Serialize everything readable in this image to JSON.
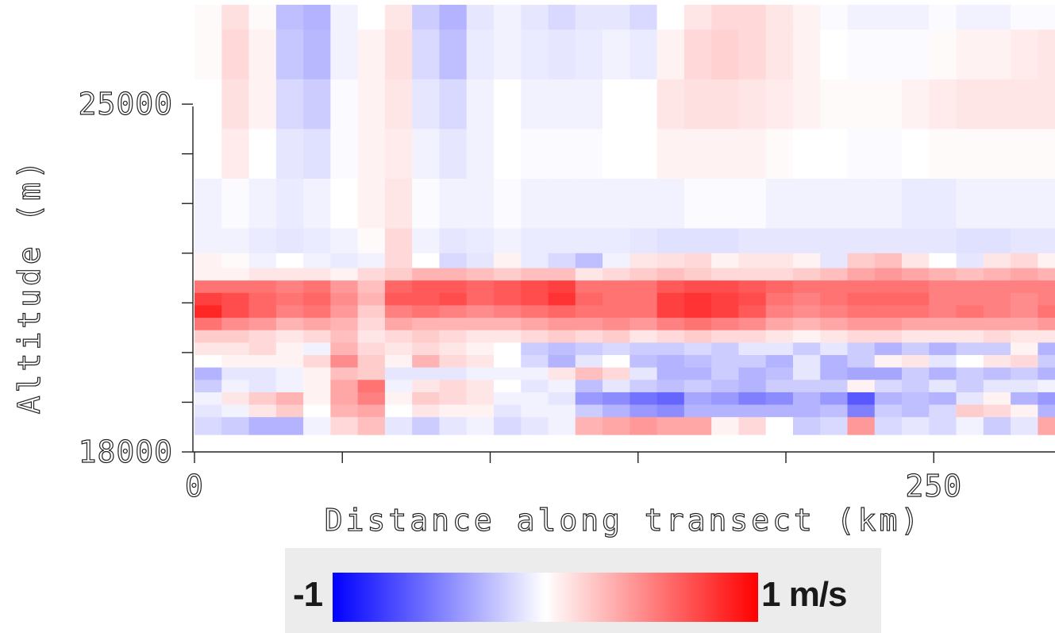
{
  "chart_data": {
    "type": "heatmap",
    "xlabel": "Distance along transect (km)",
    "ylabel": "Altitude (m)",
    "xlim": [
      0,
      291
    ],
    "ylim": [
      18000,
      27000
    ],
    "x_tick_values": [
      0,
      50,
      100,
      150,
      200,
      250
    ],
    "x_tick_labels": [
      "0",
      "",
      "",
      "",
      "",
      "250"
    ],
    "y_tick_values": [
      18000,
      19000,
      20000,
      21000,
      22000,
      23000,
      24000,
      25000
    ],
    "y_tick_labels": [
      "18000",
      "",
      "",
      "",
      "",
      "",
      "",
      "25000"
    ],
    "data_y_range": [
      18350,
      27000
    ],
    "x_edges": [
      0,
      9.2,
      18.4,
      27.6,
      36.8,
      46,
      55.2,
      64.4,
      73.6,
      82.8,
      92,
      101.2,
      110.4,
      119.6,
      128.8,
      138,
      147.2,
      156.4,
      165.6,
      174.8,
      184,
      193.2,
      202.4,
      211.6,
      220.8,
      230,
      239.2,
      248.4,
      257.6,
      266.8,
      276,
      285.2,
      291
    ],
    "layers": [
      {
        "y0": 26500,
        "y1": 27000,
        "values": [
          0.02,
          0.12,
          0.02,
          -0.25,
          -0.3,
          -0.05,
          0.0,
          0.1,
          -0.2,
          -0.3,
          -0.1,
          -0.05,
          -0.1,
          -0.15,
          -0.1,
          -0.1,
          -0.15,
          0.0,
          0.1,
          0.15,
          0.15,
          0.1,
          0.05,
          -0.02,
          -0.05,
          -0.05,
          -0.05,
          -0.02,
          -0.05,
          -0.05,
          -0.02,
          -0.02
        ]
      },
      {
        "y0": 25500,
        "y1": 26500,
        "values": [
          0.02,
          0.15,
          0.05,
          -0.22,
          -0.28,
          -0.05,
          0.05,
          0.12,
          -0.15,
          -0.25,
          -0.08,
          -0.05,
          -0.08,
          -0.1,
          -0.08,
          -0.05,
          -0.08,
          0.05,
          0.15,
          0.18,
          0.15,
          0.1,
          0.05,
          0.0,
          -0.02,
          -0.02,
          -0.02,
          0.02,
          0.05,
          0.05,
          0.08,
          0.1
        ]
      },
      {
        "y0": 24500,
        "y1": 25500,
        "values": [
          0.0,
          0.12,
          0.05,
          -0.15,
          -0.2,
          -0.02,
          0.05,
          0.1,
          -0.1,
          -0.15,
          -0.05,
          0.0,
          -0.05,
          -0.05,
          -0.05,
          0.0,
          0.0,
          0.1,
          0.12,
          0.12,
          0.1,
          0.08,
          0.05,
          0.02,
          0.02,
          0.02,
          0.05,
          0.08,
          0.1,
          0.1,
          0.1,
          0.1
        ]
      },
      {
        "y0": 23500,
        "y1": 24500,
        "values": [
          0.0,
          0.08,
          0.0,
          -0.1,
          -0.12,
          -0.02,
          0.05,
          0.08,
          -0.05,
          -0.1,
          -0.05,
          0.0,
          -0.02,
          -0.02,
          -0.02,
          0.0,
          0.0,
          0.05,
          0.05,
          0.05,
          0.05,
          0.02,
          0.0,
          0.0,
          -0.02,
          -0.02,
          0.0,
          0.02,
          0.02,
          0.02,
          0.02,
          0.02
        ]
      },
      {
        "y0": 22500,
        "y1": 23500,
        "values": [
          -0.05,
          -0.02,
          -0.05,
          -0.08,
          -0.05,
          0.0,
          0.05,
          0.1,
          -0.02,
          -0.05,
          -0.05,
          -0.02,
          -0.05,
          -0.05,
          -0.05,
          -0.05,
          -0.05,
          -0.05,
          -0.02,
          -0.02,
          -0.02,
          -0.05,
          -0.05,
          -0.05,
          -0.05,
          -0.05,
          -0.08,
          -0.08,
          -0.05,
          -0.05,
          -0.05,
          -0.05
        ]
      },
      {
        "y0": 22000,
        "y1": 22500,
        "values": [
          -0.05,
          -0.05,
          -0.08,
          -0.1,
          -0.08,
          -0.05,
          0.02,
          0.15,
          -0.05,
          -0.1,
          -0.08,
          -0.05,
          -0.08,
          -0.08,
          -0.08,
          -0.08,
          -0.1,
          -0.12,
          -0.12,
          -0.12,
          -0.1,
          -0.1,
          -0.1,
          -0.1,
          -0.1,
          -0.1,
          -0.1,
          -0.1,
          -0.12,
          -0.12,
          -0.1,
          -0.1
        ]
      },
      {
        "y0": 21700,
        "y1": 22000,
        "values": [
          0.05,
          0.02,
          -0.05,
          0.0,
          -0.05,
          -0.08,
          -0.05,
          0.15,
          0.0,
          -0.15,
          -0.1,
          0.05,
          -0.08,
          -0.15,
          -0.25,
          -0.05,
          0.1,
          0.12,
          0.15,
          0.05,
          0.1,
          0.1,
          0.05,
          -0.1,
          0.2,
          0.25,
          0.1,
          0.0,
          -0.1,
          0.1,
          0.15,
          0.05
        ]
      },
      {
        "y0": 21450,
        "y1": 21700,
        "values": [
          0.05,
          0.05,
          0.1,
          0.1,
          0.1,
          0.05,
          0.15,
          0.2,
          0.3,
          0.3,
          0.25,
          0.2,
          0.25,
          0.25,
          0.1,
          0.15,
          0.2,
          0.25,
          0.2,
          0.15,
          0.15,
          0.15,
          0.2,
          0.25,
          0.35,
          0.4,
          0.35,
          0.3,
          0.25,
          0.3,
          0.35,
          0.3
        ]
      },
      {
        "y0": 21200,
        "y1": 21450,
        "values": [
          0.55,
          0.55,
          0.55,
          0.5,
          0.55,
          0.4,
          0.25,
          0.6,
          0.65,
          0.65,
          0.6,
          0.65,
          0.7,
          0.75,
          0.55,
          0.55,
          0.55,
          0.65,
          0.7,
          0.7,
          0.65,
          0.6,
          0.55,
          0.55,
          0.55,
          0.55,
          0.55,
          0.5,
          0.5,
          0.5,
          0.5,
          0.5
        ]
      },
      {
        "y0": 20950,
        "y1": 21200,
        "values": [
          0.75,
          0.7,
          0.6,
          0.55,
          0.6,
          0.45,
          0.3,
          0.65,
          0.65,
          0.7,
          0.6,
          0.65,
          0.7,
          0.8,
          0.6,
          0.55,
          0.55,
          0.75,
          0.8,
          0.75,
          0.7,
          0.55,
          0.5,
          0.55,
          0.6,
          0.6,
          0.6,
          0.5,
          0.5,
          0.5,
          0.45,
          0.5
        ]
      },
      {
        "y0": 20700,
        "y1": 20950,
        "values": [
          0.85,
          0.7,
          0.6,
          0.5,
          0.55,
          0.4,
          0.2,
          0.5,
          0.55,
          0.5,
          0.45,
          0.5,
          0.55,
          0.6,
          0.55,
          0.55,
          0.55,
          0.75,
          0.8,
          0.75,
          0.65,
          0.5,
          0.45,
          0.5,
          0.55,
          0.55,
          0.55,
          0.5,
          0.55,
          0.5,
          0.45,
          0.55
        ]
      },
      {
        "y0": 20450,
        "y1": 20700,
        "values": [
          0.55,
          0.45,
          0.4,
          0.3,
          0.35,
          0.3,
          0.15,
          0.35,
          0.3,
          0.3,
          0.3,
          0.3,
          0.35,
          0.4,
          0.4,
          0.45,
          0.4,
          0.5,
          0.55,
          0.5,
          0.45,
          0.35,
          0.3,
          0.35,
          0.4,
          0.4,
          0.35,
          0.35,
          0.35,
          0.35,
          0.35,
          0.4
        ]
      },
      {
        "y0": 20200,
        "y1": 20450,
        "values": [
          0.2,
          0.2,
          0.15,
          0.1,
          0.15,
          0.25,
          0.1,
          0.15,
          0.2,
          0.15,
          0.1,
          0.1,
          0.15,
          0.2,
          0.15,
          0.2,
          0.1,
          0.15,
          0.2,
          0.15,
          0.15,
          0.1,
          0.05,
          0.1,
          0.15,
          0.15,
          0.1,
          0.1,
          0.1,
          0.15,
          0.1,
          0.1
        ]
      },
      {
        "y0": 19950,
        "y1": 20200,
        "values": [
          0.1,
          0.1,
          0.15,
          0.05,
          -0.05,
          0.3,
          0.15,
          0.1,
          0.15,
          0.1,
          0.05,
          0.0,
          -0.2,
          -0.25,
          -0.2,
          -0.15,
          -0.2,
          -0.2,
          -0.15,
          -0.2,
          -0.1,
          -0.1,
          -0.2,
          -0.1,
          -0.2,
          -0.3,
          -0.2,
          -0.3,
          -0.2,
          -0.2,
          0.05,
          -0.3
        ]
      },
      {
        "y0": 19700,
        "y1": 19950,
        "values": [
          0.0,
          0.05,
          0.05,
          0.05,
          0.15,
          0.45,
          0.2,
          0.05,
          0.3,
          0.15,
          0.1,
          0.0,
          -0.15,
          -0.3,
          -0.1,
          0.0,
          -0.25,
          -0.3,
          -0.25,
          -0.2,
          -0.2,
          -0.3,
          -0.1,
          -0.3,
          -0.2,
          0.05,
          0.1,
          -0.1,
          0.0,
          0.1,
          0.15,
          -0.2
        ]
      },
      {
        "y0": 19450,
        "y1": 19700,
        "values": [
          -0.3,
          -0.1,
          -0.1,
          -0.05,
          0.05,
          0.25,
          0.2,
          -0.1,
          -0.1,
          -0.1,
          -0.05,
          -0.05,
          -0.05,
          0.1,
          0.25,
          0.15,
          -0.1,
          -0.3,
          -0.3,
          -0.2,
          -0.3,
          -0.25,
          -0.1,
          -0.3,
          -0.35,
          -0.35,
          -0.2,
          -0.3,
          -0.2,
          -0.25,
          -0.2,
          -0.3
        ]
      },
      {
        "y0": 19200,
        "y1": 19450,
        "values": [
          -0.2,
          -0.05,
          -0.1,
          -0.05,
          0.05,
          0.35,
          0.55,
          -0.05,
          0.1,
          0.15,
          0.1,
          0.0,
          -0.1,
          -0.05,
          -0.25,
          -0.1,
          -0.2,
          -0.25,
          -0.2,
          -0.25,
          -0.3,
          -0.2,
          -0.2,
          -0.2,
          0.05,
          -0.15,
          -0.2,
          -0.1,
          -0.2,
          -0.1,
          -0.1,
          -0.05
        ]
      },
      {
        "y0": 18950,
        "y1": 19200,
        "values": [
          -0.05,
          0.1,
          0.2,
          0.3,
          0.05,
          0.35,
          0.5,
          0.05,
          0.2,
          0.15,
          0.1,
          -0.05,
          -0.05,
          -0.1,
          -0.4,
          -0.45,
          -0.55,
          -0.6,
          -0.35,
          -0.4,
          -0.5,
          -0.45,
          -0.3,
          -0.4,
          -0.65,
          -0.3,
          -0.25,
          -0.3,
          -0.1,
          0.05,
          -0.3,
          -0.4
        ]
      },
      {
        "y0": 18700,
        "y1": 18950,
        "values": [
          -0.1,
          -0.05,
          0.1,
          0.2,
          0.0,
          0.3,
          0.35,
          0.0,
          0.1,
          0.05,
          0.05,
          -0.1,
          -0.05,
          -0.05,
          -0.2,
          -0.3,
          -0.4,
          -0.45,
          -0.3,
          -0.3,
          -0.3,
          -0.3,
          -0.3,
          -0.25,
          -0.5,
          -0.2,
          -0.25,
          -0.15,
          0.2,
          0.15,
          0.05,
          -0.3
        ]
      },
      {
        "y0": 18350,
        "y1": 18700,
        "values": [
          -0.15,
          -0.2,
          -0.3,
          -0.3,
          -0.05,
          0.15,
          0.25,
          -0.1,
          -0.2,
          -0.1,
          -0.05,
          -0.15,
          -0.1,
          -0.05,
          0.3,
          0.35,
          0.4,
          0.35,
          0.35,
          0.05,
          0.15,
          0.0,
          -0.2,
          -0.15,
          0.4,
          -0.15,
          -0.1,
          -0.15,
          -0.05,
          -0.2,
          -0.1,
          0.35
        ]
      }
    ],
    "colorbar": {
      "min_label": "-1",
      "max_label": "1 m/s",
      "min_color": "#0000ff",
      "mid_color": "#ffffff",
      "max_color": "#ff0000"
    }
  }
}
